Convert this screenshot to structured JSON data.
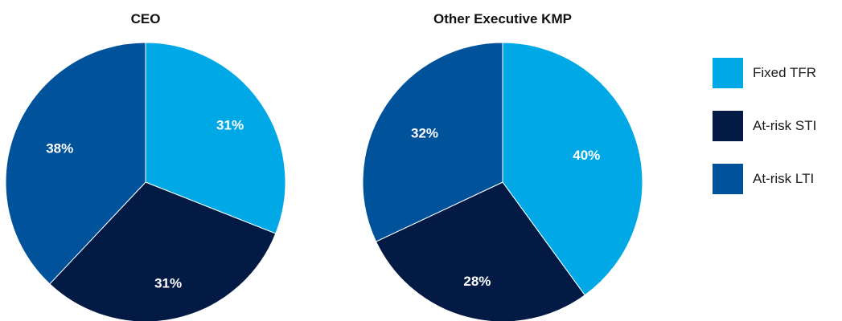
{
  "legend": {
    "items": [
      {
        "label": "Fixed TFR",
        "color": "#00A9E6"
      },
      {
        "label": "At-risk STI",
        "color": "#031A45"
      },
      {
        "label": "At-risk LTI",
        "color": "#00529B"
      }
    ]
  },
  "chart_data": [
    {
      "type": "pie",
      "title": "CEO",
      "start": "12 o'clock, clockwise",
      "slices": [
        {
          "name": "Fixed TFR",
          "value": 31,
          "label": "31%",
          "color": "#00A9E6"
        },
        {
          "name": "At-risk STI",
          "value": 31,
          "label": "31%",
          "color": "#031A45"
        },
        {
          "name": "At-risk LTI",
          "value": 38,
          "label": "38%",
          "color": "#00529B"
        }
      ]
    },
    {
      "type": "pie",
      "title": "Other Executive KMP",
      "start": "12 o'clock, clockwise",
      "slices": [
        {
          "name": "Fixed TFR",
          "value": 40,
          "label": "40%",
          "color": "#00A9E6"
        },
        {
          "name": "At-risk STI",
          "value": 28,
          "label": "28%",
          "color": "#031A45"
        },
        {
          "name": "At-risk LTI",
          "value": 32,
          "label": "32%",
          "color": "#00529B"
        }
      ]
    }
  ]
}
